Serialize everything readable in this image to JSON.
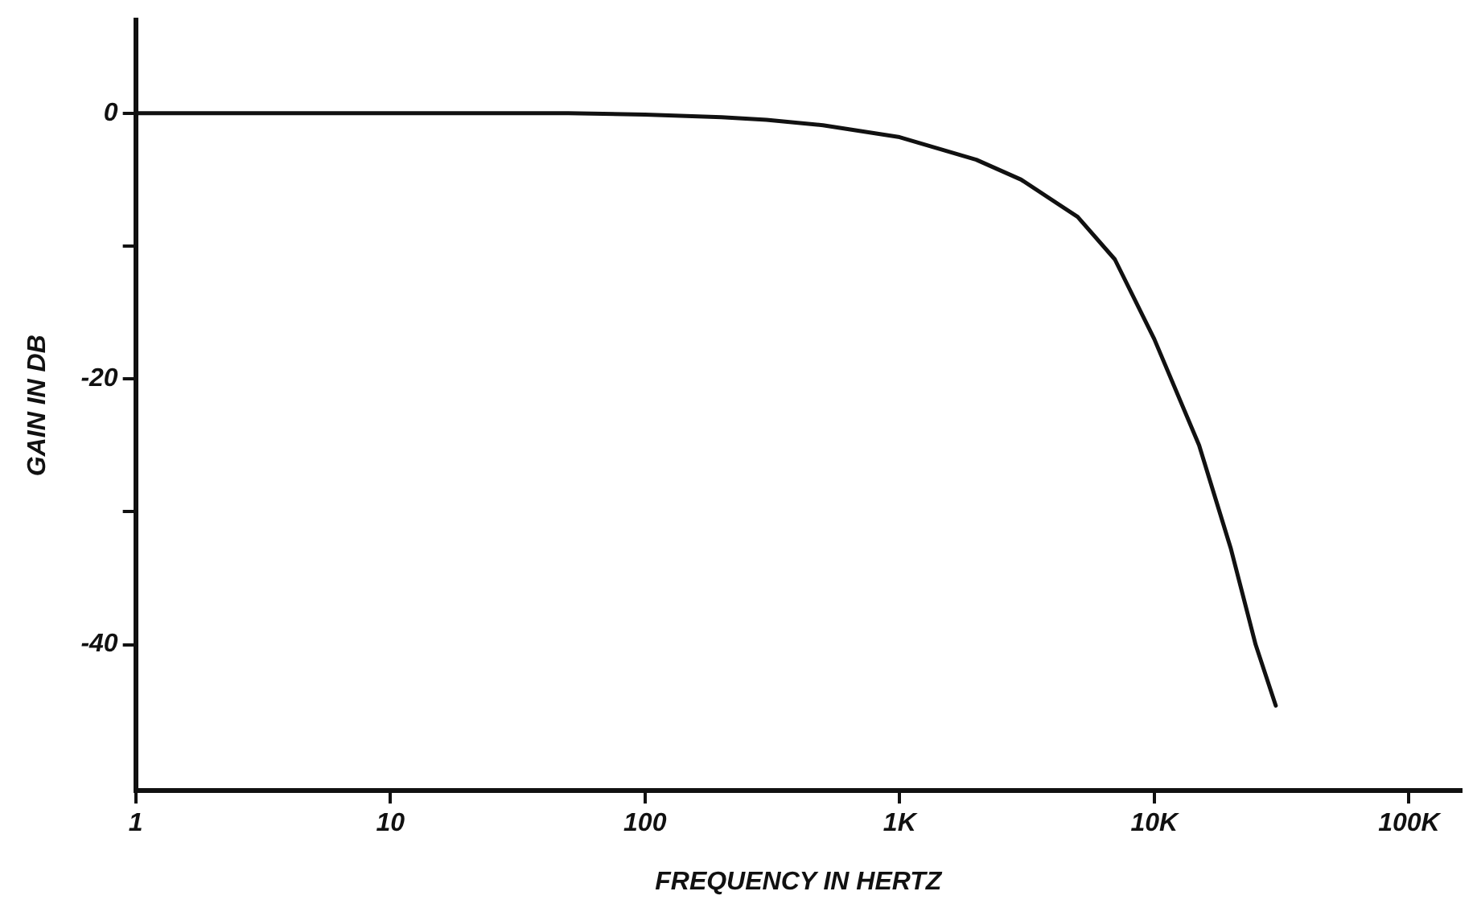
{
  "chart_data": {
    "type": "line",
    "xlabel": "FREQUENCY IN HERTZ",
    "ylabel": "GAIN IN DB",
    "log": "x",
    "x": [
      1,
      10,
      50,
      100,
      200,
      300,
      500,
      1000,
      2000,
      3000,
      5000,
      7000,
      10000,
      15000,
      20000,
      25000,
      30000
    ],
    "series": [
      {
        "color": "#111111",
        "values": [
          0,
          0,
          0,
          -0.1,
          -0.3,
          -0.5,
          -0.9,
          -1.8,
          -3.5,
          -5,
          -7.8,
          -11,
          -17,
          -25,
          -32.8,
          -40,
          -44.6
        ]
      }
    ],
    "xlim": [
      1,
      160000
    ],
    "xticks": [
      1,
      10,
      100,
      {
        "value": 1000,
        "label": "1K"
      },
      {
        "value": 10000,
        "label": "10K"
      },
      {
        "value": 100000,
        "label": "100K"
      }
    ],
    "ylim": [
      -51,
      7
    ],
    "yticks": [
      0,
      {
        "value": -10,
        "label": null
      },
      -20,
      {
        "value": -30,
        "label": null
      },
      -40
    ],
    "grid": false,
    "legend": false,
    "marker": "none",
    "line_style": "solid"
  }
}
